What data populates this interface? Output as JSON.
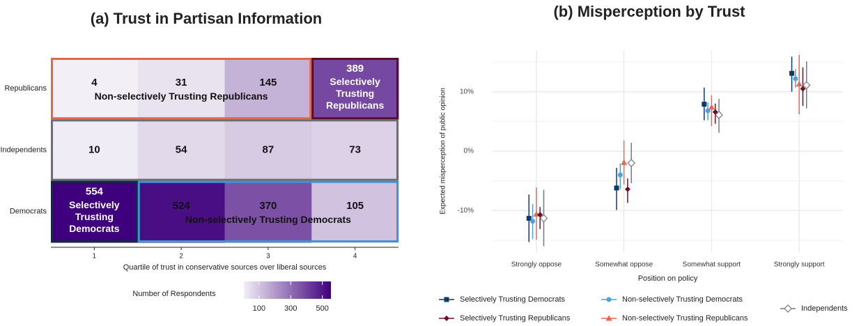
{
  "chart_data": [
    {
      "type": "heatmap",
      "title": "(a) Trust in Partisan Information",
      "rows": [
        "Republicans",
        "Independents",
        "Democrats"
      ],
      "categories": [
        "1",
        "2",
        "3",
        "4"
      ],
      "values": [
        [
          4,
          31,
          145,
          389
        ],
        [
          10,
          54,
          87,
          73
        ],
        [
          554,
          524,
          370,
          105
        ]
      ],
      "x_label": "Quartile of trust in conservative sources over liberal sources",
      "colorbar_title": "Number of Respondents",
      "colormap": [
        "#f2eff6",
        "#3f007d"
      ],
      "clim": [
        4,
        554
      ],
      "colorbar_ticks": [
        100,
        300,
        500
      ],
      "groups": [
        {
          "label": "Non-selectively Trusting Republicans",
          "row": "Republicans",
          "columns": [
            "1",
            "2",
            "3"
          ],
          "color": "#e0664f"
        },
        {
          "label": "Selectively Trusting Republicans",
          "row": "Republicans",
          "columns": [
            "4"
          ],
          "color": "#5a0b2e",
          "text_color": "#ffffff"
        },
        {
          "row": "Independents",
          "columns": [
            "1",
            "2",
            "3",
            "4"
          ],
          "color": "#6e6e6e"
        },
        {
          "label": "Selectively Trusting Democrats",
          "row": "Democrats",
          "columns": [
            "1"
          ],
          "color": "#0d2b45",
          "text_color": "#ffffff"
        },
        {
          "label": "Non-selectively Trusting Democrats",
          "row": "Democrats",
          "columns": [
            "2",
            "3",
            "4"
          ],
          "color": "#3d96d2"
        }
      ]
    },
    {
      "type": "pointrange",
      "title": "(b) Misperception by Trust",
      "categories": [
        "Strongly oppose",
        "Somewhat oppose",
        "Somewhat support",
        "Strongly support"
      ],
      "x_label": "Position on policy",
      "y_label": "Expected misperception of public opinion",
      "ylim": [
        -17,
        17
      ],
      "yticks": [
        {
          "value": -10,
          "label": "-10%"
        },
        {
          "value": 0,
          "label": "0%"
        },
        {
          "value": 10,
          "label": "10%"
        }
      ],
      "minor_yticks": [
        -15,
        -5,
        5,
        15
      ],
      "grid": true,
      "series": [
        {
          "name": "Selectively Trusting Democrats",
          "color": "#0b3a6b",
          "marker": "square",
          "values": [
            -11.3,
            -6.2,
            7.9,
            13.1
          ],
          "lower": [
            -15.3,
            -9.9,
            5.2,
            10.0
          ],
          "upper": [
            -7.3,
            -2.8,
            10.7,
            15.9
          ]
        },
        {
          "name": "Non-selectively Trusting Democrats",
          "color": "#4aa3d8",
          "marker": "circle",
          "values": [
            -11.8,
            -4.0,
            6.8,
            12.2
          ],
          "lower": [
            -14.8,
            -6.4,
            5.2,
            10.7
          ],
          "upper": [
            -8.9,
            -2.1,
            8.2,
            13.8
          ]
        },
        {
          "name": "Non-selectively Trusting Republicans",
          "color": "#e8674f",
          "marker": "triangle",
          "values": [
            -10.6,
            -1.9,
            7.4,
            11.3
          ],
          "lower": [
            -14.9,
            -5.6,
            4.2,
            6.2
          ],
          "upper": [
            -6.1,
            1.8,
            9.4,
            16.2
          ]
        },
        {
          "name": "Selectively Trusting Republicans",
          "color": "#6b0f2a",
          "marker": "diamond",
          "values": [
            -10.7,
            -6.4,
            6.6,
            10.5
          ],
          "lower": [
            -13.1,
            -8.7,
            4.6,
            7.6
          ],
          "upper": [
            -9.4,
            -4.6,
            8.0,
            14.1
          ]
        },
        {
          "name": "Independents",
          "color": "#777777",
          "marker": "open-diamond",
          "values": [
            -11.3,
            -2.0,
            6.1,
            11.1
          ],
          "lower": [
            -16.0,
            -5.4,
            3.1,
            7.2
          ],
          "upper": [
            -6.5,
            1.4,
            8.8,
            15.1
          ]
        }
      ]
    }
  ]
}
